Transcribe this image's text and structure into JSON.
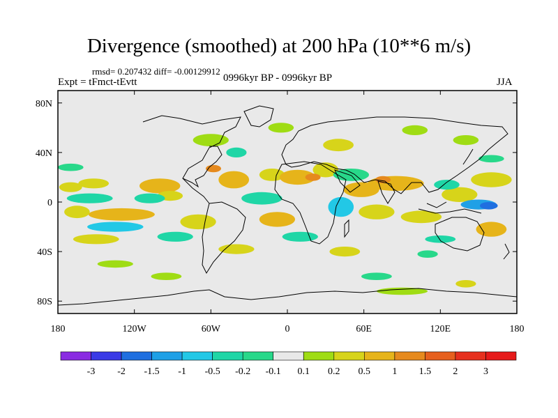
{
  "chart_data": {
    "type": "heatmap",
    "title": "Divergence (smoothed) at 200 hPa (10**6 m/s)",
    "stats": "rmsd= 0.207432  diff= -0.00129912",
    "experiment": "Expt = tFmct-tEvtt",
    "period": "0996kyr BP - 0996kyr BP",
    "season": "JJA",
    "x_ticks": [
      {
        "value": -180,
        "label": "180"
      },
      {
        "value": -120,
        "label": "120W"
      },
      {
        "value": -60,
        "label": "60W"
      },
      {
        "value": 0,
        "label": "0"
      },
      {
        "value": 60,
        "label": "60E"
      },
      {
        "value": 120,
        "label": "120E"
      },
      {
        "value": 180,
        "label": "180"
      }
    ],
    "y_ticks": [
      {
        "value": 80,
        "label": "80N"
      },
      {
        "value": 40,
        "label": "40N"
      },
      {
        "value": 0,
        "label": "0"
      },
      {
        "value": -40,
        "label": "40S"
      },
      {
        "value": -80,
        "label": "80S"
      }
    ],
    "xlim": [
      -180,
      180
    ],
    "ylim": [
      -90,
      90
    ],
    "colorbar": {
      "levels": [
        "-3",
        "-2",
        "-1.5",
        "-1",
        "-0.5",
        "-0.2",
        "-0.1",
        "0.1",
        "0.2",
        "0.5",
        "1",
        "1.5",
        "2",
        "3"
      ],
      "colors": [
        "#8a2be2",
        "#3a3ae6",
        "#1f6fe0",
        "#1fa0e6",
        "#22c8e6",
        "#1fd6a6",
        "#28d88a",
        "#e8e8e8",
        "#9fdc14",
        "#d7d41a",
        "#e6b41a",
        "#e68a1e",
        "#e6601e",
        "#e6301e",
        "#e61a1a"
      ]
    },
    "field_blobs": [
      {
        "lon": -170,
        "lat": 12,
        "rlon": 9,
        "rlat": 4,
        "level": 9
      },
      {
        "lon": -152,
        "lat": 15,
        "rlon": 12,
        "rlat": 4,
        "level": 9
      },
      {
        "lon": -100,
        "lat": 13,
        "rlon": 16,
        "rlat": 6,
        "level": 10
      },
      {
        "lon": -92,
        "lat": 5,
        "rlon": 10,
        "rlat": 4,
        "level": 9
      },
      {
        "lon": -42,
        "lat": 18,
        "rlon": 12,
        "rlat": 7,
        "level": 10
      },
      {
        "lon": -12,
        "lat": 22,
        "rlon": 10,
        "rlat": 5,
        "level": 9
      },
      {
        "lon": 8,
        "lat": 20,
        "rlon": 14,
        "rlat": 6,
        "level": 10
      },
      {
        "lon": 30,
        "lat": 26,
        "rlon": 10,
        "rlat": 6,
        "level": 9
      },
      {
        "lon": 58,
        "lat": 10,
        "rlon": 14,
        "rlat": 6,
        "level": 10
      },
      {
        "lon": 85,
        "lat": 15,
        "rlon": 22,
        "rlat": 6,
        "level": 10
      },
      {
        "lon": 135,
        "lat": 6,
        "rlon": 14,
        "rlat": 6,
        "level": 9
      },
      {
        "lon": 160,
        "lat": 18,
        "rlon": 16,
        "rlat": 6,
        "level": 9
      },
      {
        "lon": -60,
        "lat": 50,
        "rlon": 14,
        "rlat": 5,
        "level": 8
      },
      {
        "lon": -5,
        "lat": 60,
        "rlon": 10,
        "rlat": 4,
        "level": 8
      },
      {
        "lon": 40,
        "lat": 46,
        "rlon": 12,
        "rlat": 5,
        "level": 9
      },
      {
        "lon": 100,
        "lat": 58,
        "rlon": 10,
        "rlat": 4,
        "level": 8
      },
      {
        "lon": 140,
        "lat": 50,
        "rlon": 10,
        "rlat": 4,
        "level": 8
      },
      {
        "lon": -130,
        "lat": -10,
        "rlon": 26,
        "rlat": 5,
        "level": 10
      },
      {
        "lon": -165,
        "lat": -8,
        "rlon": 10,
        "rlat": 5,
        "level": 9
      },
      {
        "lon": -70,
        "lat": -16,
        "rlon": 14,
        "rlat": 6,
        "level": 9
      },
      {
        "lon": -8,
        "lat": -14,
        "rlon": 14,
        "rlat": 6,
        "level": 10
      },
      {
        "lon": 70,
        "lat": -8,
        "rlon": 14,
        "rlat": 6,
        "level": 9
      },
      {
        "lon": 105,
        "lat": -12,
        "rlon": 16,
        "rlat": 5,
        "level": 9
      },
      {
        "lon": 160,
        "lat": -22,
        "rlon": 12,
        "rlat": 6,
        "level": 10
      },
      {
        "lon": -150,
        "lat": -30,
        "rlon": 18,
        "rlat": 4,
        "level": 9
      },
      {
        "lon": -40,
        "lat": -38,
        "rlon": 14,
        "rlat": 4,
        "level": 9
      },
      {
        "lon": 45,
        "lat": -40,
        "rlon": 12,
        "rlat": 4,
        "level": 9
      },
      {
        "lon": -135,
        "lat": -50,
        "rlon": 14,
        "rlat": 3,
        "level": 8
      },
      {
        "lon": -95,
        "lat": -60,
        "rlon": 12,
        "rlat": 3,
        "level": 8
      },
      {
        "lon": 90,
        "lat": -72,
        "rlon": 20,
        "rlat": 3,
        "level": 8
      },
      {
        "lon": 140,
        "lat": -66,
        "rlon": 8,
        "rlat": 3,
        "level": 9
      },
      {
        "lon": -170,
        "lat": 28,
        "rlon": 10,
        "rlat": 3,
        "level": 6
      },
      {
        "lon": -155,
        "lat": 3,
        "rlon": 18,
        "rlat": 4,
        "level": 5
      },
      {
        "lon": -108,
        "lat": 3,
        "rlon": 12,
        "rlat": 4,
        "level": 5
      },
      {
        "lon": -20,
        "lat": 3,
        "rlon": 16,
        "rlat": 5,
        "level": 5
      },
      {
        "lon": 50,
        "lat": 22,
        "rlon": 14,
        "rlat": 5,
        "level": 6
      },
      {
        "lon": 42,
        "lat": -4,
        "rlon": 10,
        "rlat": 8,
        "level": 4
      },
      {
        "lon": 125,
        "lat": 14,
        "rlon": 10,
        "rlat": 4,
        "level": 5
      },
      {
        "lon": 150,
        "lat": -2,
        "rlon": 14,
        "rlat": 4,
        "level": 3
      },
      {
        "lon": 158,
        "lat": -3,
        "rlon": 7,
        "rlat": 3,
        "level": 2
      },
      {
        "lon": -135,
        "lat": -20,
        "rlon": 22,
        "rlat": 4,
        "level": 4
      },
      {
        "lon": -88,
        "lat": -28,
        "rlon": 14,
        "rlat": 4,
        "level": 5
      },
      {
        "lon": 10,
        "lat": -28,
        "rlon": 14,
        "rlat": 4,
        "level": 5
      },
      {
        "lon": 120,
        "lat": -30,
        "rlon": 12,
        "rlat": 3,
        "level": 5
      },
      {
        "lon": 70,
        "lat": -60,
        "rlon": 12,
        "rlat": 3,
        "level": 6
      },
      {
        "lon": 110,
        "lat": -42,
        "rlon": 8,
        "rlat": 3,
        "level": 6
      },
      {
        "lon": -40,
        "lat": 40,
        "rlon": 8,
        "rlat": 4,
        "level": 5
      },
      {
        "lon": 160,
        "lat": 35,
        "rlon": 10,
        "rlat": 3,
        "level": 6
      },
      {
        "lon": -58,
        "lat": 27,
        "rlon": 6,
        "rlat": 3,
        "level": 11
      },
      {
        "lon": 20,
        "lat": 20,
        "rlon": 6,
        "rlat": 3,
        "level": 11
      },
      {
        "lon": 75,
        "lat": 18,
        "rlon": 6,
        "rlat": 3,
        "level": 11
      }
    ]
  }
}
